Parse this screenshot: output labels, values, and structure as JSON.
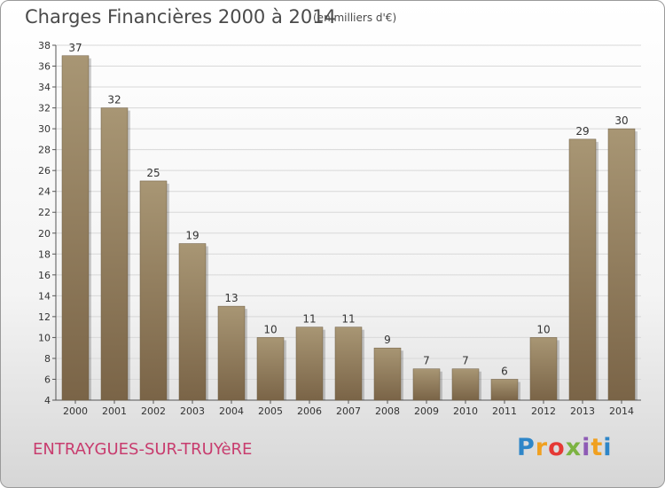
{
  "header": {
    "title": "Charges Financières 2000 à 2014",
    "subtitle": "(en milliers d'€)"
  },
  "footer": {
    "commune": "ENTRAYGUES-SUR-TRUYèRE",
    "logo_letters": [
      "P",
      "r",
      "o",
      "x",
      "i",
      "t",
      "i"
    ],
    "logo_colors": [
      "#2e86c8",
      "#f0a020",
      "#e53935",
      "#7cb342",
      "#8e5bb5",
      "#f0a020",
      "#2e86c8"
    ]
  },
  "chart_data": {
    "type": "bar",
    "title": "Charges Financières 2000 à 2014",
    "subtitle": "(en milliers d'€)",
    "categories": [
      "2000",
      "2001",
      "2002",
      "2003",
      "2004",
      "2005",
      "2006",
      "2007",
      "2008",
      "2009",
      "2010",
      "2011",
      "2012",
      "2013",
      "2014"
    ],
    "values": [
      37,
      32,
      25,
      19,
      13,
      10,
      11,
      11,
      9,
      7,
      7,
      6,
      10,
      29,
      30
    ],
    "ylim": [
      4,
      38
    ],
    "yticks": [
      4,
      6,
      8,
      10,
      12,
      14,
      16,
      18,
      20,
      22,
      24,
      26,
      28,
      30,
      32,
      34,
      36,
      38
    ],
    "grid": true,
    "bar_color_light": "#a89674",
    "bar_color_dark": "#7a6447"
  }
}
